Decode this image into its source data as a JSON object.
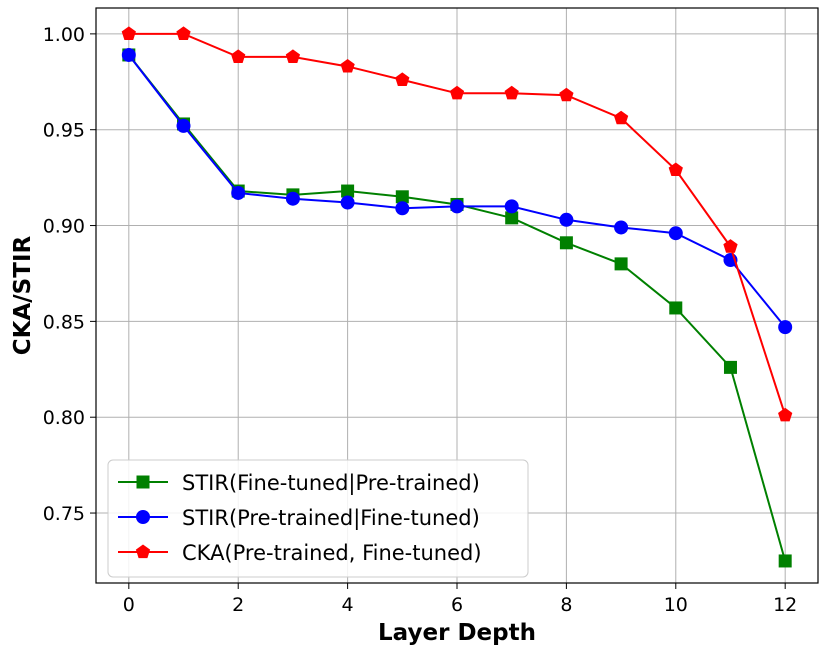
{
  "chart_data": {
    "type": "line",
    "xlabel": "Layer Depth",
    "ylabel": "CKA/STIR",
    "xlim": [
      -0.6,
      12.6
    ],
    "ylim": [
      0.7135,
      1.0135
    ],
    "x_ticks": [
      0,
      2,
      4,
      6,
      8,
      10,
      12
    ],
    "y_ticks": [
      0.75,
      0.8,
      0.85,
      0.9,
      0.95,
      1.0
    ],
    "x_tick_labels": [
      "0",
      "2",
      "4",
      "6",
      "8",
      "10",
      "12"
    ],
    "y_tick_labels": [
      "0.75",
      "0.80",
      "0.85",
      "0.90",
      "0.95",
      "1.00"
    ],
    "grid": true,
    "legend_position": "lower-left",
    "x": [
      0,
      1,
      2,
      3,
      4,
      5,
      6,
      7,
      8,
      9,
      10,
      11,
      12
    ],
    "series": [
      {
        "name": "STIR(Fine-tuned|Pre-trained)",
        "color": "#008000",
        "marker": "square",
        "values": [
          0.989,
          0.953,
          0.918,
          0.916,
          0.918,
          0.915,
          0.911,
          0.904,
          0.891,
          0.88,
          0.857,
          0.826,
          0.725
        ]
      },
      {
        "name": "STIR(Pre-trained|Fine-tuned)",
        "color": "#0000ff",
        "marker": "circle",
        "values": [
          0.989,
          0.952,
          0.917,
          0.914,
          0.912,
          0.909,
          0.91,
          0.91,
          0.903,
          0.899,
          0.896,
          0.882,
          0.847
        ]
      },
      {
        "name": "CKA(Pre-trained, Fine-tuned)",
        "color": "#ff0000",
        "marker": "pentagon",
        "values": [
          1.0,
          1.0,
          0.988,
          0.988,
          0.983,
          0.976,
          0.969,
          0.969,
          0.968,
          0.956,
          0.929,
          0.889,
          0.801
        ]
      }
    ]
  }
}
